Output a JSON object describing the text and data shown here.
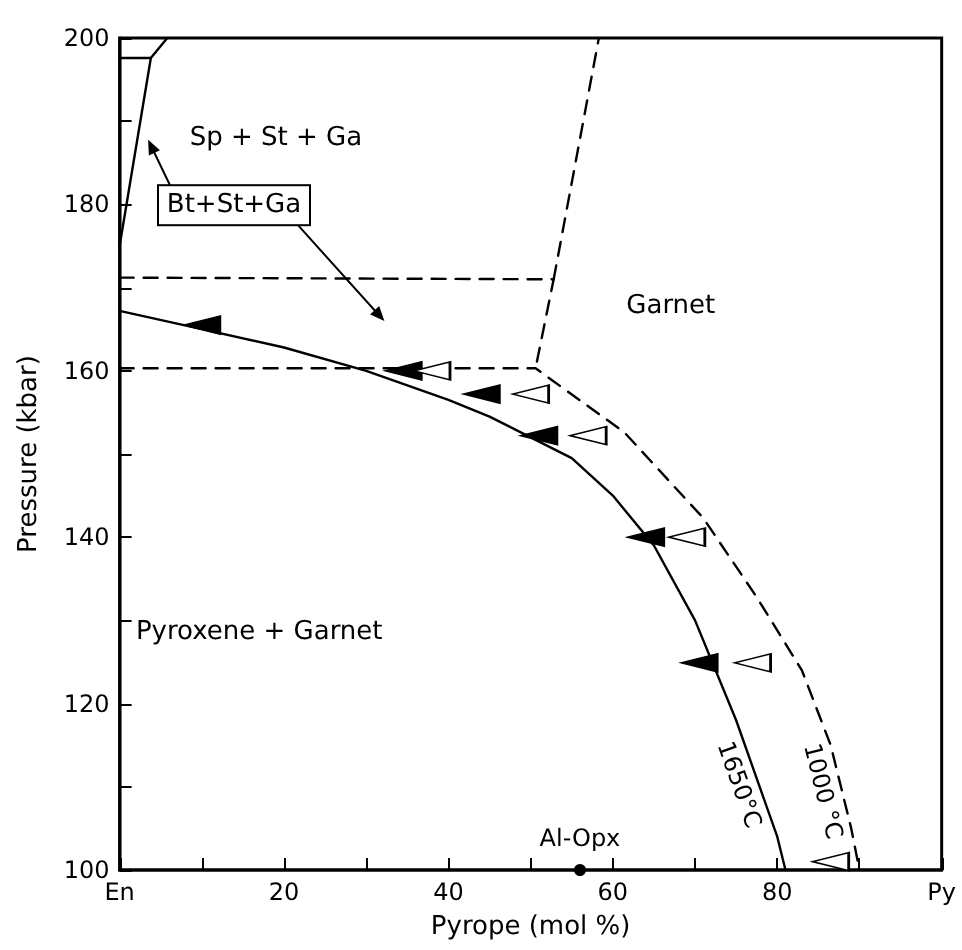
{
  "chart_data": {
    "type": "line",
    "xlabel": "Pyrope (mol %)",
    "ylabel": "Pressure (kbar)",
    "xlim": [
      0,
      100
    ],
    "ylim": [
      100,
      200
    ],
    "xticks": [
      {
        "value": 0,
        "label": "En"
      },
      {
        "value": 10,
        "label": null
      },
      20,
      {
        "value": 30,
        "label": null
      },
      40,
      {
        "value": 50,
        "label": null
      },
      60,
      {
        "value": 70,
        "label": null
      },
      80,
      {
        "value": 90,
        "label": null
      },
      {
        "value": 100,
        "label": "Py"
      }
    ],
    "yticks": [
      100,
      {
        "value": 110,
        "label": null
      },
      120,
      {
        "value": 130,
        "label": null
      },
      140,
      {
        "value": 150,
        "label": null
      },
      160,
      {
        "value": 170,
        "label": null
      },
      180,
      {
        "value": 190,
        "label": null
      },
      200
    ],
    "grid": false,
    "legend": false,
    "series": [
      {
        "name": "1650°C",
        "color": "#000000",
        "line_style": "solid",
        "marker": "none",
        "x": [
          0,
          10,
          20,
          30,
          40,
          45,
          50,
          55,
          60,
          65,
          70,
          75,
          80,
          81
        ],
        "values": [
          167.2,
          165,
          162.8,
          160,
          156.5,
          154.5,
          152,
          149.5,
          145,
          139,
          130,
          118,
          104,
          100
        ]
      },
      {
        "name": "1000 °C",
        "color": "#000000",
        "line_style": "dashed",
        "marker": "none",
        "x": [
          0,
          50.6,
          61.4,
          71,
          77.5,
          83,
          86.5,
          89,
          90
        ],
        "values": [
          160.3,
          160.3,
          152.6,
          142.3,
          132.8,
          124,
          115,
          105,
          100
        ]
      },
      {
        "color": "#000000",
        "line_style": "dashed",
        "marker": "none",
        "x": [
          0,
          52.8,
          50.6
        ],
        "values": [
          171.2,
          171,
          160.3
        ]
      },
      {
        "color": "#000000",
        "line_style": "dashed",
        "marker": "none",
        "x": [
          52.8,
          58.3
        ],
        "values": [
          171,
          200
        ]
      },
      {
        "color": "#000000",
        "line_style": "solid",
        "marker": "none",
        "x": [
          0,
          3.8,
          5.8
        ],
        "values": [
          175,
          197.6,
          200
        ]
      },
      {
        "color": "#000000",
        "line_style": "solid",
        "marker": "none",
        "x": [
          0,
          3.8
        ],
        "values": [
          197.6,
          197.6
        ]
      },
      {
        "type": "scatter",
        "color": "#000000",
        "marker": "triangle",
        "x": [
          10,
          34.5,
          44,
          51,
          64,
          70.5
        ],
        "values": [
          165.5,
          160,
          157.2,
          152.2,
          140,
          124.9
        ]
      },
      {
        "type": "scatter",
        "color": "#ffffff",
        "marker": "triangle",
        "x": [
          38,
          50,
          57,
          69,
          77,
          86.5
        ],
        "values": [
          160,
          157.2,
          152.2,
          140,
          124.9,
          101
        ]
      },
      {
        "type": "scatter",
        "color": "#000000",
        "marker": "circle",
        "x": [
          56
        ],
        "values": [
          100
        ]
      }
    ],
    "annotations": [
      "Sp + St + Ga",
      "Bt+St+Ga",
      "Garnet",
      "Pyroxene + Garnet",
      {
        "text": "Al-Opx",
        "x": 56,
        "y": 100
      }
    ]
  }
}
